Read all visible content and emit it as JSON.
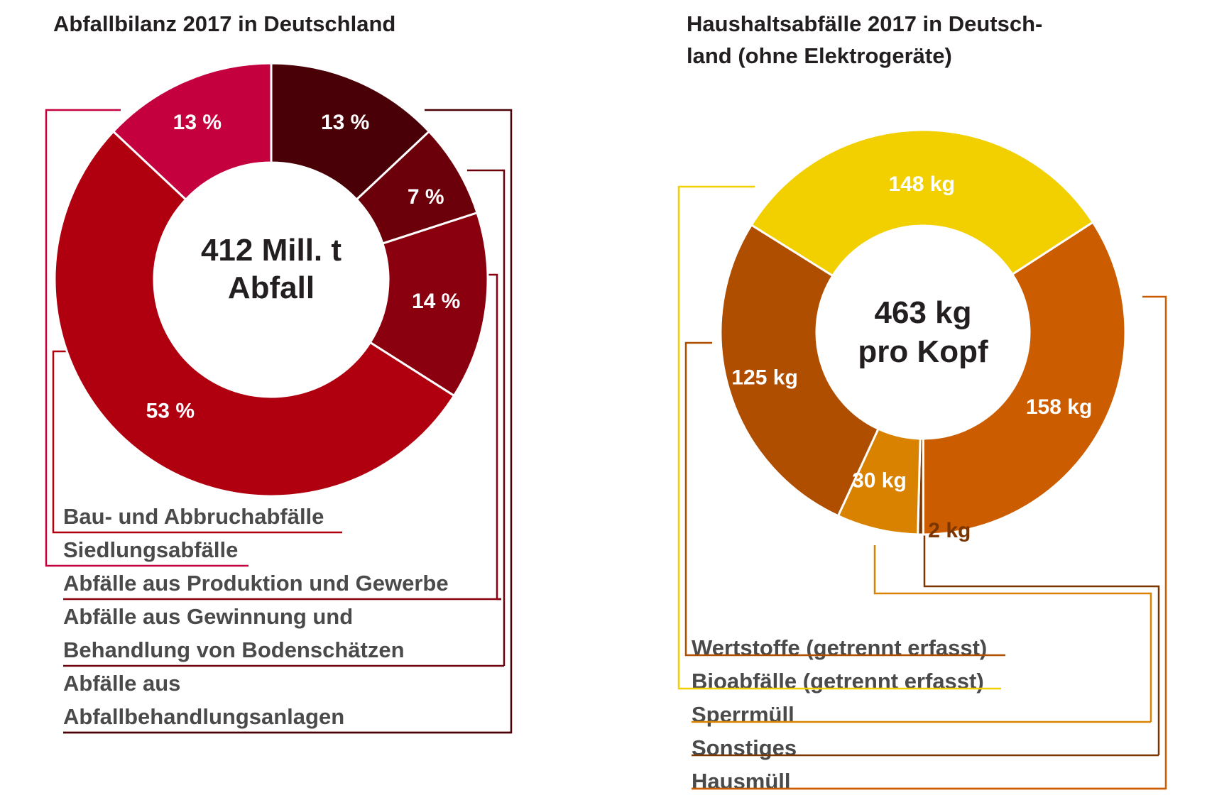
{
  "chart_data": [
    {
      "type": "pie",
      "title": "Abfallbilanz 2017 in Deutschland",
      "center_label": [
        "412 Mill. t",
        "Abfall"
      ],
      "values": [
        13,
        7,
        14,
        53,
        13
      ],
      "value_labels": [
        "13 %",
        "7 %",
        "14 %",
        "53 %",
        "13 %"
      ],
      "colors": [
        "#4a0007",
        "#6b000b",
        "#8a000f",
        "#b0000f",
        "#c4003f"
      ],
      "legend": [
        [
          "Bau- und Abbruchabfälle"
        ],
        [
          "Siedlungsabfälle"
        ],
        [
          "Abfälle aus Produktion und Gewerbe"
        ],
        [
          "Abfälle aus Gewinnung und",
          "Behandlung von Bodenschätzen"
        ],
        [
          "Abfälle aus",
          "Abfallbehandlungsanlagen"
        ]
      ],
      "legend_colors": [
        "#b0000f",
        "#c4003f",
        "#8a000f",
        "#6b000b",
        "#4a0007"
      ]
    },
    {
      "type": "pie",
      "title": [
        "Haushaltsabfälle 2017 in Deutsch-",
        "land (ohne Elektrogeräte)"
      ],
      "center_label": [
        "463 kg",
        "pro Kopf"
      ],
      "values": [
        148,
        158,
        2,
        30,
        125
      ],
      "value_labels": [
        "148 kg",
        "158 kg",
        "2 kg",
        "30 kg",
        "125 kg"
      ],
      "colors": [
        "#f2d000",
        "#cc5c00",
        "#7a3500",
        "#d98200",
        "#b04e00"
      ],
      "legend": [
        "Wertstoffe (getrennt erfasst)",
        "Bioabfälle (getrennt erfasst)",
        "Sperrmüll",
        "Sonstiges",
        "Hausmüll"
      ],
      "legend_colors": [
        "#b04e00",
        "#f2d000",
        "#d98200",
        "#7a3500",
        "#cc5c00"
      ]
    }
  ]
}
